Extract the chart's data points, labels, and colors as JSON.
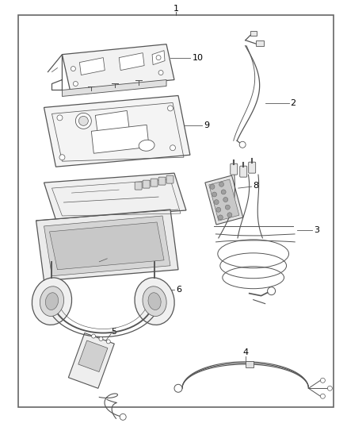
{
  "bg_color": "#ffffff",
  "border_color": "#666666",
  "line_color": "#555555",
  "label_color": "#000000",
  "fig_width": 4.38,
  "fig_height": 5.33,
  "dpi": 100
}
